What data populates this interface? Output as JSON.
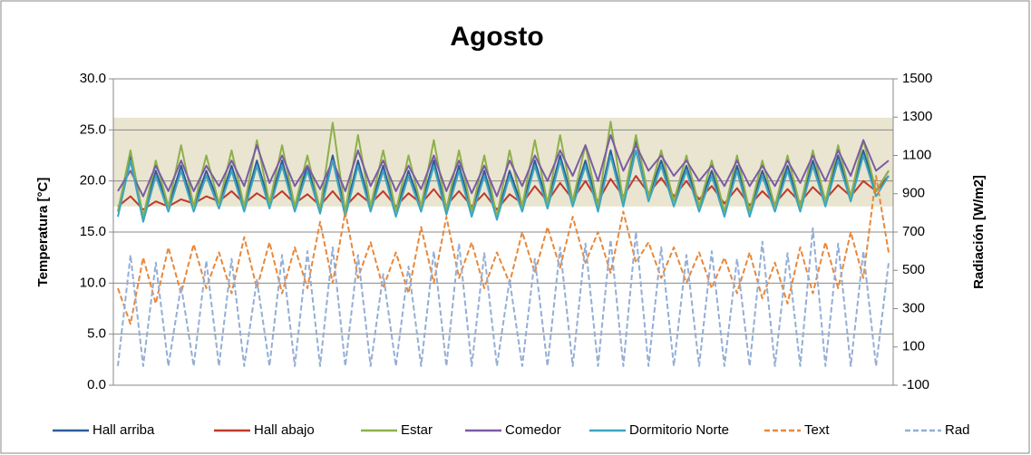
{
  "chart_data": {
    "type": "line",
    "title": "Agosto",
    "y_label": "Temperatura [°C]",
    "y2_label": "Radiación [W/m2]",
    "ylim": [
      0,
      30
    ],
    "yticks": [
      {
        "value": 0,
        "label": "0.0"
      },
      {
        "value": 5,
        "label": "5.0"
      },
      {
        "value": 10,
        "label": "10.0"
      },
      {
        "value": 15,
        "label": "15.0"
      },
      {
        "value": 20,
        "label": "20.0"
      },
      {
        "value": 25,
        "label": "25.0"
      },
      {
        "value": 30,
        "label": "30.0"
      }
    ],
    "y2lim": [
      -100,
      1500
    ],
    "y2ticks": [
      -100,
      100,
      300,
      500,
      700,
      900,
      1100,
      1300,
      1500
    ],
    "grid": true,
    "legend": "bottom",
    "shaded_range": [
      17.5,
      26.2
    ],
    "series": [
      {
        "name": "Hall arriba",
        "color": "#2e5c9a",
        "dashed": false,
        "values": [
          17,
          22.5,
          16.5,
          21,
          17.5,
          21.5,
          17.5,
          21,
          17.8,
          21.5,
          17.5,
          22,
          17.8,
          22,
          17.5,
          21.5,
          17.2,
          22.5,
          17,
          22,
          17.5,
          21.5,
          17,
          21,
          17.5,
          22,
          17.2,
          21.5,
          17,
          21,
          16.5,
          21,
          17.5,
          22,
          17.8,
          22.5,
          18,
          22,
          17.5,
          23,
          18,
          24,
          18.5,
          22,
          18,
          21.5,
          17.5,
          21,
          17,
          21.5,
          17,
          21,
          17.5,
          21.5,
          17.5,
          22,
          18,
          22.5,
          18.5,
          23,
          19,
          21
        ]
      },
      {
        "name": "Hall abajo",
        "color": "#c0392b",
        "dashed": false,
        "values": [
          17.5,
          18.5,
          17.2,
          18,
          17.5,
          18.2,
          17.8,
          18.5,
          18,
          19,
          17.8,
          18.8,
          18,
          19,
          17.8,
          18.7,
          17.6,
          19,
          17.5,
          18.8,
          17.8,
          19,
          17.5,
          18.8,
          17.8,
          19.2,
          17.6,
          19,
          17.5,
          18.8,
          17.2,
          18.7,
          17.8,
          19.5,
          18,
          19.8,
          18.2,
          20,
          18,
          20.2,
          18.5,
          20.5,
          18.8,
          20.3,
          18.5,
          20,
          18.2,
          19.5,
          17.8,
          19.3,
          17.6,
          19,
          17.8,
          19.2,
          17.9,
          19.4,
          18.2,
          19.6,
          18.5,
          20,
          19,
          20.5
        ]
      },
      {
        "name": "Estar",
        "color": "#8db04a",
        "dashed": false,
        "values": [
          17,
          23,
          16.5,
          22,
          17.5,
          23.5,
          17.5,
          22.5,
          17.8,
          23,
          17.5,
          24,
          17.8,
          23.5,
          17.5,
          22.5,
          17.2,
          25.7,
          17,
          24.5,
          17.5,
          23,
          17,
          22.5,
          17.5,
          24,
          17.2,
          23,
          17,
          22.5,
          16.5,
          23,
          17.5,
          24,
          17.8,
          24.5,
          18,
          23.5,
          17.5,
          25.8,
          18,
          24.5,
          18.5,
          23,
          18,
          22.5,
          17.5,
          22,
          17,
          22.5,
          17,
          22,
          17.5,
          22.5,
          17.5,
          23,
          18,
          23.5,
          18.5,
          24,
          19,
          21
        ]
      },
      {
        "name": "Comedor",
        "color": "#7b5ba6",
        "dashed": false,
        "values": [
          19,
          21,
          18.5,
          21.5,
          19,
          22,
          19,
          21.5,
          19.5,
          22,
          19.5,
          23.5,
          19.8,
          22.5,
          19.5,
          21.5,
          19.2,
          22,
          19,
          23,
          19.5,
          22,
          19,
          21.5,
          19.2,
          22.5,
          19,
          22,
          18.8,
          21.5,
          18.5,
          22,
          19.5,
          22.5,
          20,
          23,
          20.5,
          23.5,
          20,
          24.5,
          21,
          23.5,
          21,
          22.5,
          20.5,
          22,
          20,
          21.5,
          19.5,
          22,
          19.5,
          21.5,
          19.5,
          22,
          19.8,
          22.5,
          20,
          23,
          20.5,
          24,
          21,
          22
        ]
      },
      {
        "name": "Dormitorio Norte",
        "color": "#3aa6c0",
        "dashed": false,
        "values": [
          16.5,
          22,
          16,
          20.5,
          17,
          21,
          17,
          20.5,
          17.3,
          21,
          17,
          21.5,
          17.3,
          21.5,
          17,
          21,
          16.8,
          22,
          16.5,
          21.5,
          17,
          21,
          16.5,
          20.5,
          17,
          21.5,
          16.7,
          21,
          16.5,
          20.5,
          16.2,
          20.5,
          17,
          21.5,
          17.3,
          22,
          17.5,
          21.5,
          17,
          22.5,
          17.5,
          23,
          18,
          21.5,
          17.5,
          21,
          17,
          20.5,
          16.5,
          21,
          16.5,
          20.5,
          17,
          21,
          17,
          21.5,
          17.5,
          22,
          18,
          22.5,
          18.5,
          20.5
        ]
      },
      {
        "name": "Text",
        "color": "#e8883a",
        "dashed": true,
        "values": [
          9.5,
          6,
          12.5,
          8,
          13.5,
          9,
          13.8,
          9.5,
          13,
          9,
          14.5,
          9.5,
          14,
          9,
          13.5,
          9.5,
          16,
          10,
          17,
          10.5,
          14,
          9.5,
          13,
          9,
          15.5,
          10,
          16.5,
          10.5,
          14,
          9.5,
          13,
          10,
          15,
          11,
          15.5,
          11.5,
          16.5,
          12,
          15,
          11,
          17,
          12,
          14,
          10.5,
          13.5,
          10,
          13,
          9.5,
          12.5,
          9,
          13,
          8.5,
          12,
          8,
          13.5,
          9,
          14,
          9.5,
          15,
          10.5,
          20.5,
          13
        ]
      },
      {
        "name": "Rad",
        "color": "#94aed6",
        "dashed": true,
        "values": [
          0,
          580,
          0,
          540,
          0,
          420,
          0,
          550,
          0,
          560,
          0,
          450,
          0,
          580,
          0,
          600,
          0,
          620,
          0,
          580,
          0,
          480,
          0,
          520,
          0,
          600,
          0,
          640,
          0,
          590,
          0,
          450,
          0,
          560,
          0,
          620,
          0,
          640,
          0,
          660,
          0,
          700,
          0,
          620,
          0,
          580,
          0,
          600,
          0,
          560,
          0,
          650,
          0,
          590,
          0,
          720,
          0,
          640,
          0,
          600,
          0,
          540
        ]
      }
    ]
  }
}
